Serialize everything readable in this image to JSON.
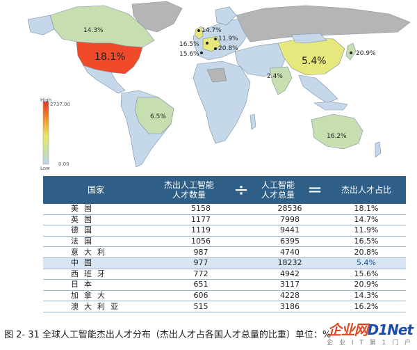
{
  "map": {
    "legend_high": "High",
    "legend_max": "2737.00",
    "legend_low": "Low",
    "legend_min": "0.00",
    "colors": {
      "ocean": "#ffffff",
      "land": "#c4d8ea",
      "border": "#7a8fa3",
      "na": "#b5b5b5",
      "low_green": "#c7dfb0",
      "mid_yellow": "#e6e77c",
      "high_red": "#ef4a2a"
    },
    "labels": [
      {
        "id": "us",
        "text": "18.1%"
      },
      {
        "id": "ca",
        "text": "14.3%"
      },
      {
        "id": "uk",
        "text": "14.7%"
      },
      {
        "id": "fr",
        "text": "16.5%"
      },
      {
        "id": "es",
        "text": "15.6%"
      },
      {
        "id": "de",
        "text": "11.9%"
      },
      {
        "id": "it",
        "text": "20.8%"
      },
      {
        "id": "cn",
        "text": "5.4%"
      },
      {
        "id": "jp",
        "text": "20.9%"
      },
      {
        "id": "in",
        "text": "2.4%"
      },
      {
        "id": "br",
        "text": "6.5%"
      },
      {
        "id": "au",
        "text": "16.2%"
      }
    ]
  },
  "table": {
    "headers": {
      "country": "国家",
      "top_talent": "杰出人工智能\n人才数量",
      "divide": "÷",
      "total_talent": "人工智能\n人才总量",
      "equals": "=",
      "ratio": "杰出人才占比"
    },
    "rows": [
      {
        "country": "美国",
        "top": "5158",
        "total": "28536",
        "ratio": "18.1%",
        "highlight": false
      },
      {
        "country": "英国",
        "top": "1177",
        "total": "7998",
        "ratio": "14.7%",
        "highlight": false
      },
      {
        "country": "德国",
        "top": "1119",
        "total": "9441",
        "ratio": "11.9%",
        "highlight": false
      },
      {
        "country": "法国",
        "top": "1056",
        "total": "6395",
        "ratio": "16.5%",
        "highlight": false
      },
      {
        "country": "意大利",
        "top": "987",
        "total": "4740",
        "ratio": "20.8%",
        "highlight": false
      },
      {
        "country": "中国",
        "top": "977",
        "total": "18232",
        "ratio": "5.4%",
        "highlight": true
      },
      {
        "country": "西班牙",
        "top": "772",
        "total": "4942",
        "ratio": "15.6%",
        "highlight": false
      },
      {
        "country": "日本",
        "top": "651",
        "total": "3117",
        "ratio": "20.9%",
        "highlight": false
      },
      {
        "country": "加拿大",
        "top": "606",
        "total": "4228",
        "ratio": "14.3%",
        "highlight": false
      },
      {
        "country": "澳大利亚",
        "top": "515",
        "total": "3186",
        "ratio": "16.2%",
        "highlight": false
      }
    ]
  },
  "caption": "图 2- 31  全球人工智能杰出人才分布（杰出人才占各国人才总量的比重）单位：%",
  "watermark": {
    "main_a": "企业网",
    "main_b": "D1Net",
    "sub": "企 业 I T 第 1 门 户"
  },
  "chart_data": {
    "type": "table",
    "title": "全球人工智能杰出人才分布（杰出人才占各国人才总量的比重）",
    "columns": [
      "国家",
      "杰出人工智能人才数量",
      "人工智能人才总量",
      "杰出人才占比"
    ],
    "rows": [
      [
        "美国",
        5158,
        28536,
        "18.1%"
      ],
      [
        "英国",
        1177,
        7998,
        "14.7%"
      ],
      [
        "德国",
        1119,
        9441,
        "11.9%"
      ],
      [
        "法国",
        1056,
        6395,
        "16.5%"
      ],
      [
        "意大利",
        987,
        4740,
        "20.8%"
      ],
      [
        "中国",
        977,
        18232,
        "5.4%"
      ],
      [
        "西班牙",
        772,
        4942,
        "15.6%"
      ],
      [
        "日本",
        651,
        3117,
        "20.9%"
      ],
      [
        "加拿大",
        606,
        4228,
        "14.3%"
      ],
      [
        "澳大利亚",
        515,
        3186,
        "16.2%"
      ]
    ],
    "map_scale": {
      "min": 0.0,
      "max": 2737.0,
      "low_label": "Low",
      "high_label": "High"
    }
  }
}
